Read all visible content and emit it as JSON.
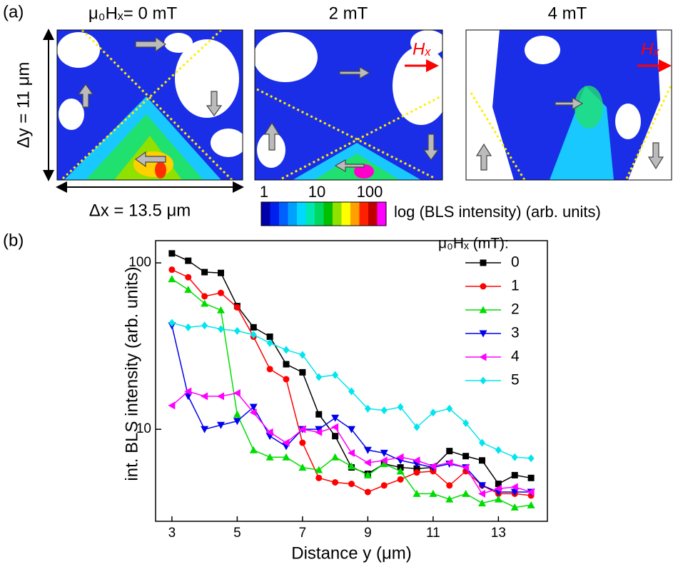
{
  "panel_a": {
    "label": "(a)",
    "titles": [
      "μ₀Hₓ= 0 mT",
      "2 mT",
      "4 mT"
    ],
    "field_labels": [
      "Hₓ",
      "Hₓ"
    ],
    "dy": "Δy = 11 μm",
    "dx": "Δx = 13.5 μm",
    "colorbar": {
      "ticks": [
        1,
        10,
        100
      ],
      "label": "log (BLS intensity) (arb. units)"
    }
  },
  "panel_b_label": "(b)",
  "chart_data": {
    "type": "line",
    "xlabel": "Distance y (μm)",
    "ylabel": "int. BLS intensity (arb. units)",
    "log_y": true,
    "xlim": [
      2.5,
      14.5
    ],
    "ylim": [
      2.8,
      136
    ],
    "xticks": [
      3,
      5,
      7,
      9,
      11,
      13
    ],
    "yticks": [
      10,
      100
    ],
    "legend_title": "μ₀Hₓ (mT):",
    "legend_position": "upper right",
    "x": [
      3,
      3.5,
      4,
      4.5,
      5,
      5.5,
      6,
      6.5,
      7,
      7.5,
      8,
      8.5,
      9,
      9.5,
      10,
      10.5,
      11,
      11.5,
      12,
      12.5,
      13,
      13.5,
      14
    ],
    "series": [
      {
        "name": "0",
        "color": "#000000",
        "marker": "square",
        "values": [
          114,
          103,
          88,
          87,
          55,
          41,
          36,
          24.6,
          22,
          12.3,
          9.1,
          5.9,
          5.4,
          6.2,
          5.9,
          5.8,
          5.9,
          7.4,
          6.9,
          6.5,
          4.7,
          5.3,
          5.1
        ]
      },
      {
        "name": "1",
        "color": "#ff0000",
        "marker": "circle",
        "values": [
          91,
          82,
          63,
          66,
          54,
          36,
          23,
          20,
          8.3,
          5.1,
          4.8,
          4.7,
          4.2,
          4.6,
          5.0,
          5.5,
          5.6,
          4.6,
          5.6,
          4.6,
          4.1,
          4.1,
          4.0
        ]
      },
      {
        "name": "2",
        "color": "#00dd00",
        "marker": "triangle-up",
        "values": [
          80,
          69,
          57,
          52,
          12.3,
          7.5,
          6.8,
          6.8,
          5.9,
          5.7,
          6.8,
          6.0,
          5.3,
          6.2,
          5.6,
          4.1,
          4.1,
          3.8,
          4.1,
          3.6,
          3.8,
          3.4,
          3.5
        ]
      },
      {
        "name": "3",
        "color": "#0000ee",
        "marker": "triangle-down",
        "values": [
          42,
          15.8,
          10,
          10.6,
          11.2,
          13.6,
          9.1,
          7.9,
          10,
          10,
          11.7,
          10,
          7.5,
          7.2,
          6.5,
          6.2,
          5.9,
          6.2,
          5.9,
          4.6,
          4.2,
          4.2,
          4.2
        ]
      },
      {
        "name": "4",
        "color": "#ff00ff",
        "marker": "triangle-left",
        "values": [
          13.9,
          16.9,
          15.8,
          15.8,
          16.5,
          12.6,
          9.6,
          8.3,
          10,
          9.6,
          10.3,
          7.2,
          6.3,
          6.5,
          6.8,
          6.5,
          6.0,
          6.3,
          5.9,
          4.1,
          4.4,
          4.5,
          4.2
        ]
      },
      {
        "name": "5",
        "color": "#00e5ee",
        "marker": "diamond",
        "values": [
          43.6,
          41,
          42,
          40,
          39,
          37,
          33,
          30,
          28,
          20.6,
          21.2,
          16.9,
          13.3,
          13.0,
          13.6,
          10.3,
          12.6,
          13.3,
          10.9,
          8.3,
          7.5,
          6.8,
          6.7
        ]
      }
    ]
  }
}
